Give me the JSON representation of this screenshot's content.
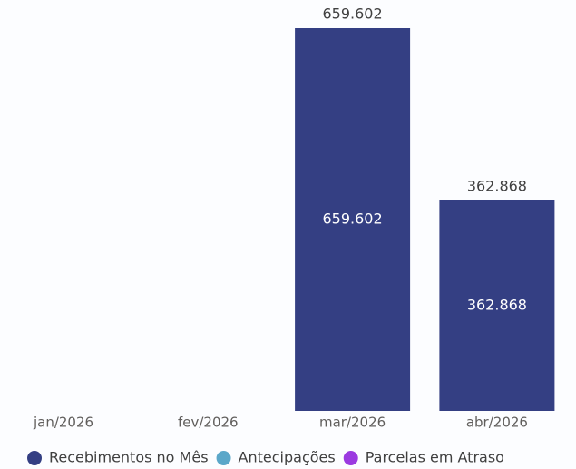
{
  "chart_data": {
    "type": "bar",
    "stacked": true,
    "categories": [
      "jan/2026",
      "fev/2026",
      "mar/2026",
      "abr/2026"
    ],
    "series": [
      {
        "name": "Recebimentos no Mês",
        "color": "#343f83",
        "values": [
          null,
          null,
          659602,
          362868
        ],
        "value_labels": [
          null,
          null,
          "659.602",
          "362.868"
        ]
      },
      {
        "name": "Antecipações",
        "color": "#5ba7c9",
        "values": [
          null,
          null,
          null,
          null
        ]
      },
      {
        "name": "Parcelas em Atraso",
        "color": "#9b3ae0",
        "values": [
          null,
          null,
          null,
          null
        ]
      }
    ]
  }
}
